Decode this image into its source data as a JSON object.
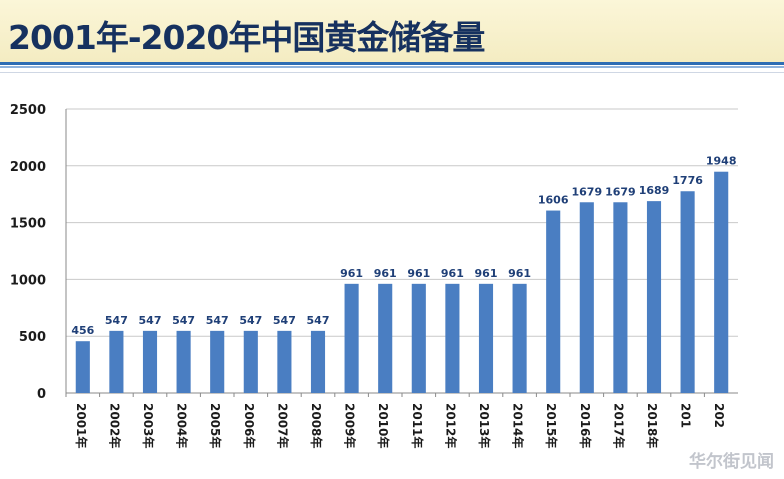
{
  "title": "2001年-2020年中国黄金储备量",
  "watermark": "华尔街见闻",
  "colors": {
    "bar": "#4a7ec2",
    "title": "#16315f",
    "accent": "#2e6db4"
  },
  "chart_data": {
    "type": "bar",
    "title": "2001年-2020年中国黄金储备量",
    "categories": [
      "2001年",
      "2002年",
      "2003年",
      "2004年",
      "2005年",
      "2006年",
      "2007年",
      "2008年",
      "2009年",
      "2010年",
      "2011年",
      "2012年",
      "2013年",
      "2014年",
      "2015年",
      "2016年",
      "2017年",
      "2018年",
      "201",
      "202"
    ],
    "values": [
      456,
      547,
      547,
      547,
      547,
      547,
      547,
      547,
      961,
      961,
      961,
      961,
      961,
      961,
      1606,
      1679,
      1679,
      1689,
      1776,
      1948
    ],
    "ylim": [
      0,
      2500
    ],
    "yticks": [
      0,
      500,
      1000,
      1500,
      2000,
      2500
    ],
    "grid": true,
    "xlabel": "",
    "ylabel": ""
  }
}
